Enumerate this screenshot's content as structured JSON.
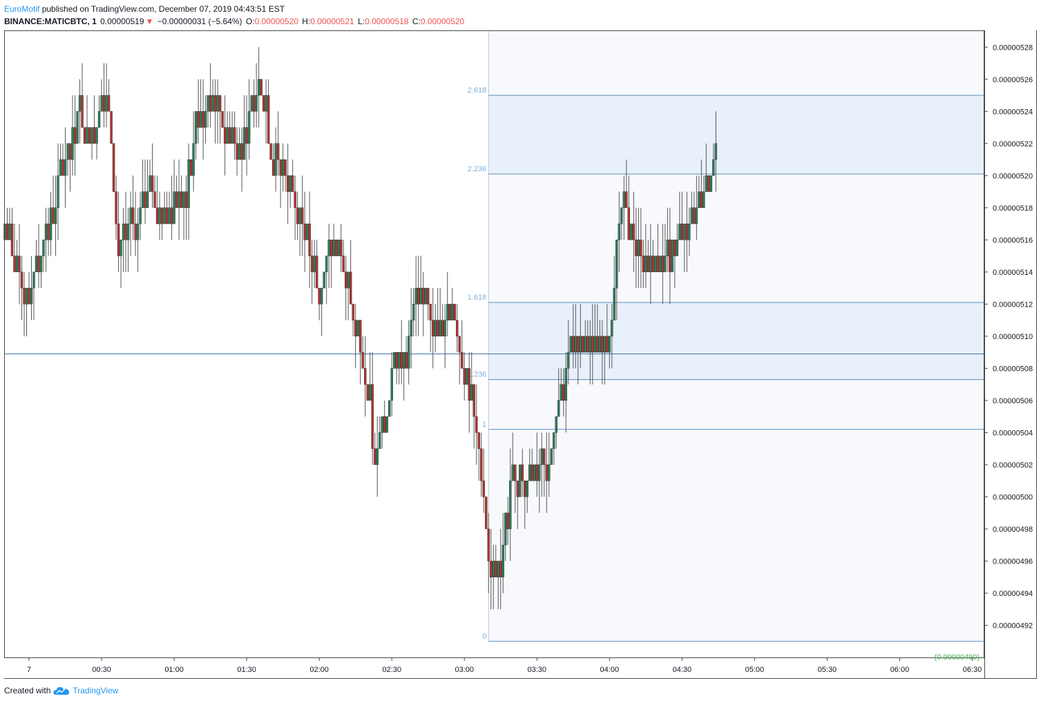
{
  "header": {
    "author": "EuroMotif",
    "published": "published on TradingView.com, December 07, 2019 04:43:51 EST",
    "symbol": "BINANCE:MATICBTC, 1",
    "last": "0.00000519",
    "change_arrow": "▼",
    "change": "−0.00000031 (−5.64%)",
    "o_label": "O:",
    "o": "0.00000520",
    "h_label": "H:",
    "h": "0.00000521",
    "l_label": "L:",
    "l": "0.00000518",
    "c_label": "C:",
    "c": "0.00000520"
  },
  "footer": {
    "created": "Created with",
    "brand": "TradingView"
  },
  "colors": {
    "up": "#26a69a",
    "up_body": "#2e7d5b",
    "down": "#b0352f",
    "wick": "#555555",
    "fib_line": "#5b8db8",
    "fib_label": "#7fb0de",
    "fib_band": "#e8f0fb",
    "fib_area": "#f7f9fd",
    "hline": "#3a77b0",
    "axis_text": "#131722",
    "low_label": "#4caf50"
  },
  "chart_data": {
    "type": "candlestick",
    "ylim": [
      4.9e-06,
      5.29e-06
    ],
    "y_ticks": [
      "0.00000528",
      "0.00000526",
      "0.00000524",
      "0.00000522",
      "0.00000520",
      "0.00000518",
      "0.00000516",
      "0.00000514",
      "0.00000512",
      "0.00000510",
      "0.00000508",
      "0.00000506",
      "0.00000504",
      "0.00000502",
      "0.00000500",
      "0.00000498",
      "0.00000496",
      "0.00000494",
      "0.00000492"
    ],
    "y_tick_values": [
      5.28e-06,
      5.26e-06,
      5.24e-06,
      5.22e-06,
      5.2e-06,
      5.18e-06,
      5.16e-06,
      5.14e-06,
      5.12e-06,
      5.1e-06,
      5.08e-06,
      5.06e-06,
      5.04e-06,
      5.02e-06,
      5e-06,
      4.98e-06,
      4.96e-06,
      4.94e-06,
      4.92e-06
    ],
    "x_ticks": [
      "7",
      "00:30",
      "01:00",
      "01:30",
      "02:00",
      "02:30",
      "03:00",
      "03:30",
      "04:00",
      "04:30",
      "05:00",
      "05:30",
      "06:00",
      "06:30"
    ],
    "x_tick_minutes": [
      0,
      30,
      60,
      90,
      120,
      150,
      180,
      210,
      240,
      270,
      300,
      330,
      360,
      390
    ],
    "x_range_minutes": [
      -10,
      395
    ],
    "horizontal_line": 5.089e-06,
    "low_axis_label": "(0.00000490)",
    "low_axis_value": 4.9e-06,
    "fib": {
      "start_minute": 190,
      "levels": [
        {
          "label": "0",
          "value": 4.91e-06
        },
        {
          "label": "1",
          "value": 5.042e-06
        },
        {
          "label": "1.236",
          "value": 5.073e-06
        },
        {
          "label": "1.618",
          "value": 5.121e-06
        },
        {
          "label": "2.236",
          "value": 5.201e-06
        },
        {
          "label": "2.618",
          "value": 5.25e-06
        }
      ]
    },
    "anchors": [
      [
        -10,
        5.16e-06
      ],
      [
        0,
        5.13e-06
      ],
      [
        8,
        5.17e-06
      ],
      [
        15,
        5.21e-06
      ],
      [
        20,
        5.24e-06
      ],
      [
        25,
        5.22e-06
      ],
      [
        30,
        5.25e-06
      ],
      [
        33,
        5.24e-06
      ],
      [
        37,
        5.15e-06
      ],
      [
        40,
        5.17e-06
      ],
      [
        45,
        5.17e-06
      ],
      [
        50,
        5.2e-06
      ],
      [
        55,
        5.17e-06
      ],
      [
        60,
        5.19e-06
      ],
      [
        65,
        5.19e-06
      ],
      [
        70,
        5.24e-06
      ],
      [
        80,
        5.24e-06
      ],
      [
        85,
        5.22e-06
      ],
      [
        90,
        5.23e-06
      ],
      [
        95,
        5.26e-06
      ],
      [
        100,
        5.22e-06
      ],
      [
        105,
        5.2e-06
      ],
      [
        110,
        5.19e-06
      ],
      [
        115,
        5.16e-06
      ],
      [
        120,
        5.13e-06
      ],
      [
        125,
        5.16e-06
      ],
      [
        130,
        5.15e-06
      ],
      [
        135,
        5.1e-06
      ],
      [
        140,
        5.07e-06
      ],
      [
        143,
        5.02e-06
      ],
      [
        147,
        5.04e-06
      ],
      [
        150,
        5.08e-06
      ],
      [
        155,
        5.08e-06
      ],
      [
        160,
        5.13e-06
      ],
      [
        165,
        5.12e-06
      ],
      [
        170,
        5.1e-06
      ],
      [
        175,
        5.12e-06
      ],
      [
        180,
        5.08e-06
      ],
      [
        185,
        5.04e-06
      ],
      [
        188,
        5e-06
      ],
      [
        191,
        4.95e-06
      ],
      [
        195,
        4.96e-06
      ],
      [
        200,
        5.02e-06
      ],
      [
        205,
        5.01e-06
      ],
      [
        210,
        5.02e-06
      ],
      [
        215,
        5.02e-06
      ],
      [
        220,
        5.07e-06
      ],
      [
        225,
        5.1e-06
      ],
      [
        230,
        5.09e-06
      ],
      [
        235,
        5.09e-06
      ],
      [
        240,
        5.1e-06
      ],
      [
        243,
        5.16e-06
      ],
      [
        246,
        5.18e-06
      ],
      [
        250,
        5.16e-06
      ],
      [
        255,
        5.15e-06
      ],
      [
        260,
        5.15e-06
      ],
      [
        265,
        5.15e-06
      ],
      [
        270,
        5.16e-06
      ],
      [
        275,
        5.18e-06
      ],
      [
        278,
        5.19e-06
      ],
      [
        281,
        5.2e-06
      ],
      [
        284,
        5.2e-06
      ]
    ]
  }
}
